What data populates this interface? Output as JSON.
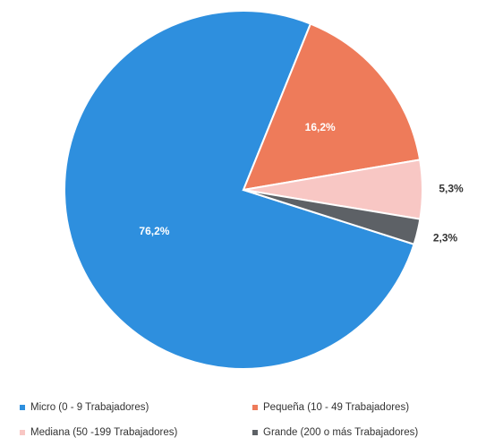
{
  "chart_data": {
    "type": "pie",
    "categories": [
      "Micro (0 - 9 Trabajadores)",
      "Pequeña (10 - 49 Trabajadores)",
      "Mediana (50 -199 Trabajadores)",
      "Grande (200 o más Trabajadores)"
    ],
    "values": [
      76.2,
      16.2,
      5.3,
      2.3
    ],
    "value_labels": [
      "76,2%",
      "16,2%",
      "5,3%",
      "2,3%"
    ],
    "colors": [
      "#2e8fde",
      "#ee7b5a",
      "#f8c7c4",
      "#5d6166"
    ],
    "legend": "bottom"
  }
}
